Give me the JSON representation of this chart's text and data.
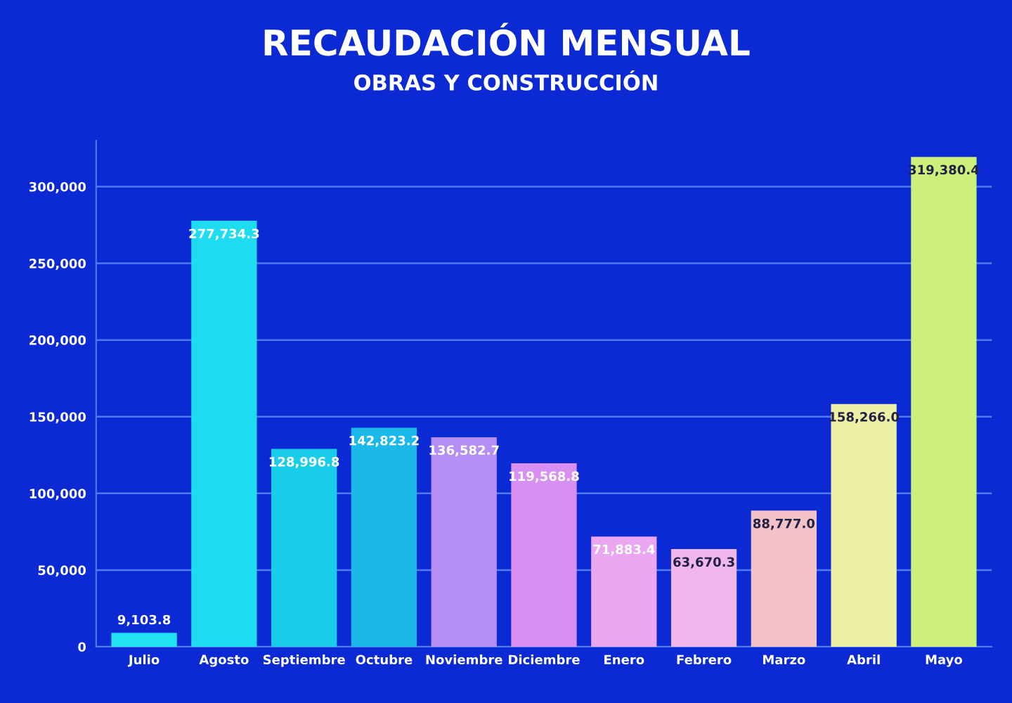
{
  "chart_data": {
    "type": "bar",
    "title": "RECAUDACIÓN MENSUAL",
    "subtitle": "OBRAS Y CONSTRUCCIÓN",
    "categories": [
      "Julio",
      "Agosto",
      "Septiembre",
      "Octubre",
      "Noviembre",
      "Diciembre",
      "Enero",
      "Febrero",
      "Marzo",
      "Abril",
      "Mayo"
    ],
    "values": [
      9103.8,
      277734.3,
      128996.8,
      142823.2,
      136582.7,
      119568.8,
      71883.4,
      63670.3,
      88777.0,
      158266.0,
      319380.4
    ],
    "value_labels": [
      "9,103.8",
      "277,734.3",
      "128,996.8",
      "142,823.2",
      "136,582.7",
      "119,568.8",
      "71,883.4",
      "63,670.3",
      "88,777.0",
      "158,266.0",
      "319,380.4"
    ],
    "colors": [
      "#22e3f2",
      "#1edcf0",
      "#19cdea",
      "#1bb9ea",
      "#b48ef2",
      "#d78ff2",
      "#eba6f2",
      "#f0b6ee",
      "#f2c2c6",
      "#eef0a6",
      "#cdf07a"
    ],
    "ylim": [
      0,
      330000
    ],
    "yticks": [
      0,
      {
        "value": 50000,
        "label": "50,000"
      },
      {
        "value": 100000,
        "label": "100,000"
      },
      {
        "value": 150000,
        "label": "150,000"
      },
      {
        "value": 200000,
        "label": "200,000"
      },
      {
        "value": 250000,
        "label": "250,000"
      },
      {
        "value": 300000,
        "label": "300,000"
      }
    ],
    "grid": "y"
  }
}
